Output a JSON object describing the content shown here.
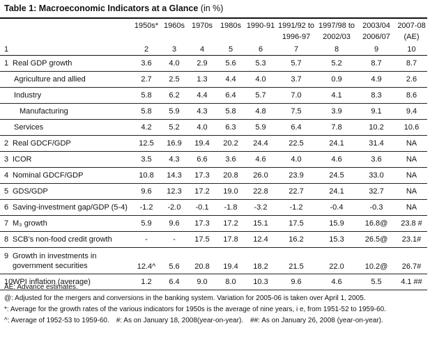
{
  "title": {
    "bold": "Table 1: Macroeconomic Indicators at a Glance",
    "unit": "(in %)"
  },
  "table": {
    "header": [
      [
        "1950s*"
      ],
      [
        "1960s"
      ],
      [
        "1970s"
      ],
      [
        "1980s"
      ],
      [
        "1990-91"
      ],
      [
        "1991/92 to",
        "1996-97"
      ],
      [
        "1997/98 to",
        "2002/03"
      ],
      [
        "2003/04",
        "2006/07"
      ],
      [
        "2007-08 (AE)"
      ]
    ],
    "column_numbers": [
      "1",
      "2",
      "3",
      "4",
      "5",
      "6",
      "7",
      "8",
      "9",
      "10"
    ],
    "rows": [
      {
        "num": "1",
        "label": "Real GDP growth",
        "values": [
          "3.6",
          "4.0",
          "2.9",
          "5.6",
          "5.3",
          "5.7",
          "5.2",
          "8.7",
          "8.7"
        ]
      },
      {
        "label": "Agriculture and allied",
        "values": [
          "2.7",
          "2.5",
          "1.3",
          "4.4",
          "4.0",
          "3.7",
          "0.9",
          "4.9",
          "2.6"
        ]
      },
      {
        "label": "Industry",
        "values": [
          "5.8",
          "6.2",
          "4.4",
          "6.4",
          "5.7",
          "7.0",
          "4.1",
          "8.3",
          "8.6"
        ]
      },
      {
        "label": "Manufacturing",
        "values": [
          "5.8",
          "5.9",
          "4.3",
          "5.8",
          "4.8",
          "7.5",
          "3.9",
          "9.1",
          "9.4"
        ]
      },
      {
        "label": "Services",
        "values": [
          "4.2",
          "5.2",
          "4.0",
          "6.3",
          "5.9",
          "6.4",
          "7.8",
          "10.2",
          "10.6"
        ]
      },
      {
        "num": "2",
        "label": "Real GDCF/GDP",
        "values": [
          "12.5",
          "16.9",
          "19.4",
          "20.2",
          "24.4",
          "22.5",
          "24.1",
          "31.4",
          "NA"
        ]
      },
      {
        "num": "3",
        "label": "ICOR",
        "values": [
          "3.5",
          "4.3",
          "6.6",
          "3.6",
          "4.6",
          "4.0",
          "4.6",
          "3.6",
          "NA"
        ]
      },
      {
        "num": "4",
        "label": "Nominal GDCF/GDP",
        "values": [
          "10.8",
          "14.3",
          "17.3",
          "20.8",
          "26.0",
          "23.9",
          "24.5",
          "33.0",
          "NA"
        ]
      },
      {
        "num": "5",
        "label": "GDS/GDP",
        "values": [
          "9.6",
          "12.3",
          "17.2",
          "19.0",
          "22.8",
          "22.7",
          "24.1",
          "32.7",
          "NA"
        ]
      },
      {
        "num": "6",
        "label": "Saving-investment gap/GDP (5-4)",
        "values": [
          "-1.2",
          "-2.0",
          "-0.1",
          "-1.8",
          "-3.2",
          "-1.2",
          "-0.4",
          "-0.3",
          "NA"
        ]
      },
      {
        "num": "7",
        "label": "M₃ growth",
        "values": [
          "5.9",
          "9.6",
          "17.3",
          "17.2",
          "15.1",
          "17.5",
          "15.9",
          "16.8@",
          "23.8 #"
        ]
      },
      {
        "num": "8",
        "label": "SCB's non-food credit growth",
        "values": [
          "-",
          "-",
          "17.5",
          "17.8",
          "12.4",
          "16.2",
          "15.3",
          "26.5@",
          "23.1#"
        ]
      },
      {
        "num": "9",
        "label": [
          "Growth in investments in",
          "government securities"
        ],
        "values": [
          "12.4^",
          "5.6",
          "20.8",
          "19.4",
          "18.2",
          "21.5",
          "22.0",
          "10.2@",
          "26.7#"
        ]
      },
      {
        "num": "10",
        "label": "WPI inflation (average)",
        "values": [
          "1.2",
          "6.4",
          "9.0",
          "8.0",
          "10.3",
          "9.6",
          "4.6",
          "5.5",
          "4.1 ##"
        ]
      }
    ]
  },
  "notes": [
    "AE: Advance estimates.",
    "@: Adjusted for the mergers and conversions in the banking system. Variation for 2005-06 is taken over April 1, 2005.",
    "*: Average for the growth rates of the various indicators for 1950s is the average of nine years, i e, from 1951-52 to 1959-60.",
    [
      "^: Average of 1952-53 to 1959-60.",
      "#: As on January 18, 2008(year-on-year).",
      "##: As on January 26, 2008 (year-on-year)."
    ]
  ]
}
